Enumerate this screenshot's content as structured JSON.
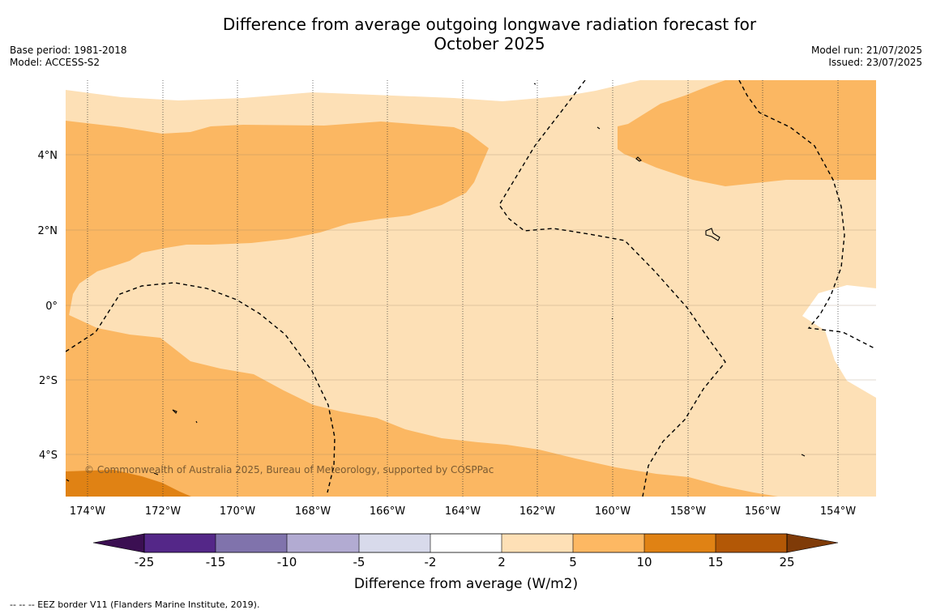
{
  "title_line1": "Difference from average outgoing longwave radiation forecast for",
  "title_line2": "October 2025",
  "base_period": "Base period: 1981-2018",
  "model": "Model: ACCESS-S2",
  "model_run": "Model run: 21/07/2025",
  "issued": "Issued: 23/07/2025",
  "copyright": "© Commonwealth of Australia 2025, Bureau of Meteorology, supported by COSPPac",
  "footnote": "--  --  -- EEZ border V11 (Flanders Marine Institute, 2019).",
  "lon_labels": [
    "174°W",
    "172°W",
    "170°W",
    "168°W",
    "166°W",
    "164°W",
    "162°W",
    "160°W",
    "158°W",
    "156°W",
    "154°W"
  ],
  "lat_labels": [
    "4°N",
    "2°N",
    "0°",
    "2°S",
    "4°S"
  ],
  "colorbar": {
    "title": "Difference from average (W/m2)",
    "ticks": [
      "-25",
      "-15",
      "-10",
      "-5",
      "-2",
      "2",
      "5",
      "10",
      "15",
      "25"
    ],
    "colors": [
      "#3b0f52",
      "#542788",
      "#8073ac",
      "#b2abd2",
      "#d8daeb",
      "#ffffff",
      "#fee0b6",
      "#fdb863",
      "#e08214",
      "#b35806",
      "#7f3b08"
    ]
  },
  "map_colors": {
    "class_2_5": "#fde0b6",
    "class_5_10": "#fbb762",
    "class_10_15": "#e08214",
    "class_neutral": "#ffffff"
  }
}
